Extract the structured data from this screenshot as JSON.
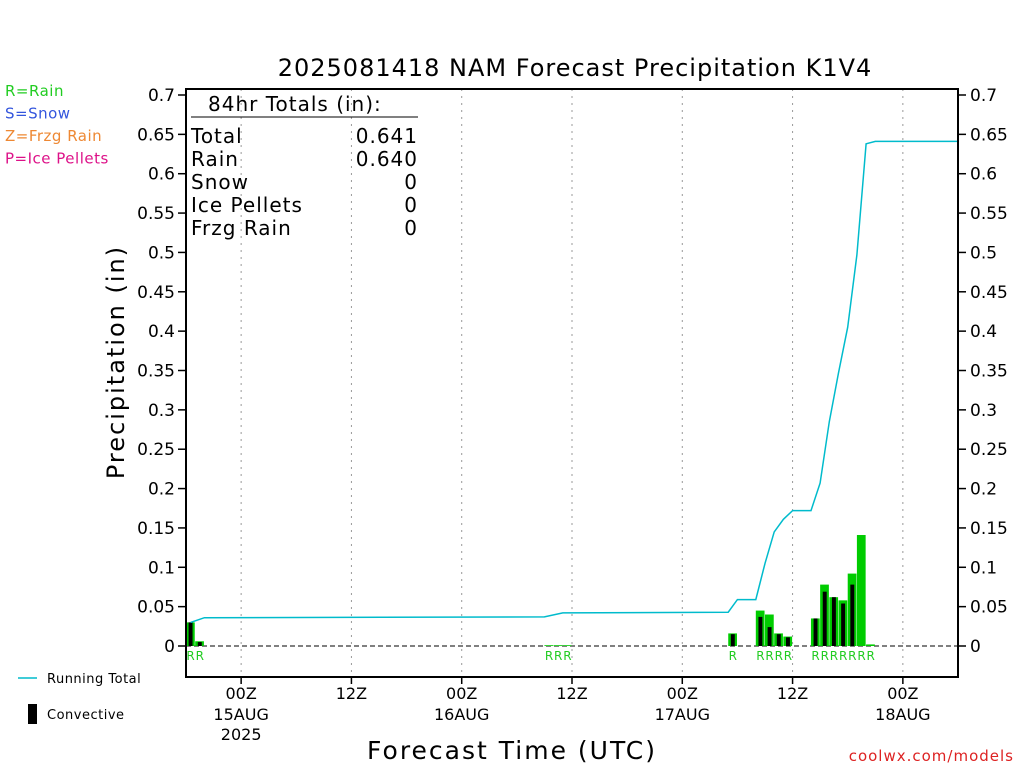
{
  "chart_data": {
    "type": "bar",
    "title": "2025081418 NAM Forecast Precipitation K1V4",
    "xlabel": "Forecast Time (UTC)",
    "ylabel": "Precipitation (in)",
    "ylim": [
      0,
      0.7
    ],
    "y_ticks": [
      "0",
      "0.05",
      "0.1",
      "0.15",
      "0.2",
      "0.25",
      "0.3",
      "0.35",
      "0.4",
      "0.45",
      "0.5",
      "0.55",
      "0.6",
      "0.65",
      "0.7"
    ],
    "x_unit": "forecast hour",
    "xlim": [
      0,
      84
    ],
    "x_ticks": [
      {
        "hour": 6,
        "label": "00Z",
        "date": "15AUG",
        "year": "2025"
      },
      {
        "hour": 18,
        "label": "12Z"
      },
      {
        "hour": 30,
        "label": "00Z",
        "date": "16AUG"
      },
      {
        "hour": 42,
        "label": "12Z"
      },
      {
        "hour": 54,
        "label": "00Z",
        "date": "17AUG"
      },
      {
        "hour": 66,
        "label": "12Z"
      },
      {
        "hour": 78,
        "label": "00Z",
        "date": "18AUG"
      }
    ],
    "grid": "vertical-dotted",
    "totals_box": {
      "heading": "84hr Totals (in):",
      "rows": [
        {
          "label": "Total",
          "value": "0.641"
        },
        {
          "label": "Rain",
          "value": "0.640"
        },
        {
          "label": "Snow",
          "value": "0"
        },
        {
          "label": "Ice Pellets",
          "value": "0"
        },
        {
          "label": "Frzg Rain",
          "value": "0"
        }
      ]
    },
    "type_legend": [
      {
        "label": "R=Rain",
        "color": "#22cc22"
      },
      {
        "label": "S=Snow",
        "color": "#3355dd"
      },
      {
        "label": "Z=Frzg Rain",
        "color": "#ee8833"
      },
      {
        "label": "P=Ice Pellets",
        "color": "#dd1188"
      }
    ],
    "series": [
      {
        "name": "Rain",
        "color": "#00cc00",
        "points": [
          {
            "hour": 1,
            "value": 0.03
          },
          {
            "hour": 2,
            "value": 0.006
          },
          {
            "hour": 40,
            "value": 0.001
          },
          {
            "hour": 41,
            "value": 0.001
          },
          {
            "hour": 42,
            "value": 0.001
          },
          {
            "hour": 60,
            "value": 0.016
          },
          {
            "hour": 63,
            "value": 0.045
          },
          {
            "hour": 64,
            "value": 0.04
          },
          {
            "hour": 65,
            "value": 0.016
          },
          {
            "hour": 66,
            "value": 0.012
          },
          {
            "hour": 69,
            "value": 0.035
          },
          {
            "hour": 70,
            "value": 0.078
          },
          {
            "hour": 71,
            "value": 0.062
          },
          {
            "hour": 72,
            "value": 0.058
          },
          {
            "hour": 73,
            "value": 0.092
          },
          {
            "hour": 74,
            "value": 0.141
          },
          {
            "hour": 75,
            "value": 0.002
          }
        ]
      },
      {
        "name": "Convective",
        "color": "#000000",
        "points": [
          {
            "hour": 1,
            "value": 0.03
          },
          {
            "hour": 2,
            "value": 0.005
          },
          {
            "hour": 60,
            "value": 0.015
          },
          {
            "hour": 63,
            "value": 0.037
          },
          {
            "hour": 64,
            "value": 0.024
          },
          {
            "hour": 65,
            "value": 0.015
          },
          {
            "hour": 66,
            "value": 0.011
          },
          {
            "hour": 69,
            "value": 0.035
          },
          {
            "hour": 70,
            "value": 0.069
          },
          {
            "hour": 71,
            "value": 0.062
          },
          {
            "hour": 72,
            "value": 0.054
          },
          {
            "hour": 73,
            "value": 0.078
          }
        ]
      },
      {
        "name": "Running Total",
        "type": "line",
        "color": "#00bbcc",
        "points": [
          {
            "hour": 0.5,
            "value": 0.03
          },
          {
            "hour": 2,
            "value": 0.036
          },
          {
            "hour": 39,
            "value": 0.037
          },
          {
            "hour": 41,
            "value": 0.042
          },
          {
            "hour": 59,
            "value": 0.043
          },
          {
            "hour": 60,
            "value": 0.059
          },
          {
            "hour": 62,
            "value": 0.059
          },
          {
            "hour": 63,
            "value": 0.105
          },
          {
            "hour": 64,
            "value": 0.145
          },
          {
            "hour": 65,
            "value": 0.161
          },
          {
            "hour": 66,
            "value": 0.172
          },
          {
            "hour": 68,
            "value": 0.172
          },
          {
            "hour": 69,
            "value": 0.207
          },
          {
            "hour": 70,
            "value": 0.285
          },
          {
            "hour": 71,
            "value": 0.347
          },
          {
            "hour": 72,
            "value": 0.405
          },
          {
            "hour": 73,
            "value": 0.497
          },
          {
            "hour": 74,
            "value": 0.638
          },
          {
            "hour": 75,
            "value": 0.641
          },
          {
            "hour": 84,
            "value": 0.641
          }
        ]
      }
    ],
    "type_codes": [
      {
        "hour": 1,
        "code": "R"
      },
      {
        "hour": 2,
        "code": "R"
      },
      {
        "hour": 40,
        "code": "R"
      },
      {
        "hour": 41,
        "code": "R"
      },
      {
        "hour": 42,
        "code": "R"
      },
      {
        "hour": 60,
        "code": "R"
      },
      {
        "hour": 63,
        "code": "R"
      },
      {
        "hour": 64,
        "code": "R"
      },
      {
        "hour": 65,
        "code": "R"
      },
      {
        "hour": 66,
        "code": "R"
      },
      {
        "hour": 69,
        "code": "R"
      },
      {
        "hour": 70,
        "code": "R"
      },
      {
        "hour": 71,
        "code": "R"
      },
      {
        "hour": 72,
        "code": "R"
      },
      {
        "hour": 73,
        "code": "R"
      },
      {
        "hour": 74,
        "code": "R"
      },
      {
        "hour": 75,
        "code": "R"
      }
    ],
    "bottom_legend": [
      {
        "label": "Running Total",
        "kind": "line",
        "color": "#00bbcc"
      },
      {
        "label": "Convective",
        "kind": "bar",
        "color": "#000000"
      }
    ],
    "credit": "coolwx.com/models"
  }
}
